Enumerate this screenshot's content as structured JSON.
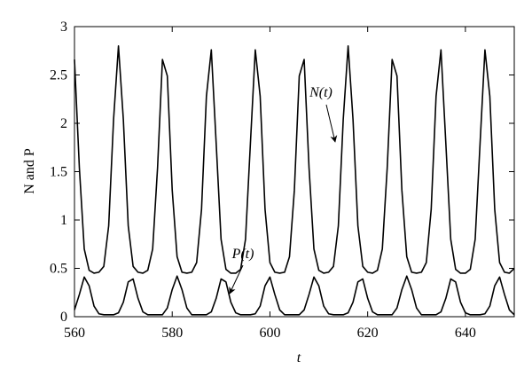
{
  "chart_data": {
    "type": "line",
    "xlabel": "t",
    "ylabel": "N and P",
    "annotations": [
      "N(t)",
      "P(t)"
    ],
    "xlim": [
      560,
      650
    ],
    "ylim": [
      0,
      3
    ],
    "xticks": [
      560,
      580,
      600,
      620,
      640
    ],
    "yticks": [
      0,
      0.5,
      1,
      1.5,
      2,
      2.5,
      3
    ],
    "grid": false,
    "x": [
      560,
      561,
      562,
      563,
      564,
      565,
      566,
      567,
      568,
      569,
      570,
      571,
      572,
      573,
      574,
      575,
      576,
      577,
      578,
      579,
      580,
      581,
      582,
      583,
      584,
      585,
      586,
      587,
      588,
      589,
      590,
      591,
      592,
      593,
      594,
      595,
      596,
      597,
      598,
      599,
      600,
      601,
      602,
      603,
      604,
      605,
      606,
      607,
      608,
      609,
      610,
      611,
      612,
      613,
      614,
      615,
      616,
      617,
      618,
      619,
      620,
      621,
      622,
      623,
      624,
      625,
      626,
      627,
      628,
      629,
      630,
      631,
      632,
      633,
      634,
      635,
      636,
      637,
      638,
      639,
      640,
      641,
      642,
      643,
      644,
      645,
      646,
      647,
      648,
      649,
      650
    ],
    "series": [
      {
        "color": "#000000",
        "values": [
          2.66,
          1.54,
          0.7,
          0.48,
          0.45,
          0.46,
          0.52,
          0.94,
          2.04,
          2.8,
          2.04,
          0.94,
          0.52,
          0.46,
          0.45,
          0.48,
          0.7,
          1.54,
          2.66,
          2.49,
          1.31,
          0.62,
          0.46,
          0.45,
          0.46,
          0.56,
          1.11,
          2.28,
          2.76,
          1.79,
          0.8,
          0.49,
          0.45,
          0.45,
          0.49,
          0.8,
          1.79,
          2.76,
          2.28,
          1.11,
          0.56,
          0.46,
          0.45,
          0.46,
          0.62,
          1.31,
          2.49,
          2.66,
          1.54,
          0.7,
          0.48,
          0.45,
          0.46,
          0.52,
          0.94,
          2.04,
          2.8,
          2.04,
          0.94,
          0.52,
          0.46,
          0.45,
          0.48,
          0.7,
          1.54,
          2.66,
          2.49,
          1.31,
          0.62,
          0.46,
          0.45,
          0.46,
          0.56,
          1.11,
          2.28,
          2.76,
          1.79,
          0.8,
          0.49,
          0.45,
          0.45,
          0.49,
          0.8,
          1.79,
          2.76,
          2.28,
          1.11,
          0.56,
          0.46,
          0.45,
          0.5
        ]
      },
      {
        "color": "#000000",
        "values": [
          0.07,
          0.23,
          0.41,
          0.32,
          0.11,
          0.03,
          0.02,
          0.02,
          0.02,
          0.04,
          0.15,
          0.36,
          0.39,
          0.19,
          0.05,
          0.02,
          0.02,
          0.02,
          0.02,
          0.09,
          0.28,
          0.42,
          0.28,
          0.09,
          0.02,
          0.02,
          0.02,
          0.02,
          0.05,
          0.19,
          0.39,
          0.36,
          0.15,
          0.04,
          0.02,
          0.02,
          0.02,
          0.03,
          0.11,
          0.32,
          0.41,
          0.23,
          0.07,
          0.02,
          0.02,
          0.02,
          0.02,
          0.07,
          0.23,
          0.41,
          0.32,
          0.11,
          0.03,
          0.02,
          0.02,
          0.02,
          0.04,
          0.15,
          0.36,
          0.39,
          0.19,
          0.05,
          0.02,
          0.02,
          0.02,
          0.02,
          0.09,
          0.28,
          0.42,
          0.28,
          0.09,
          0.02,
          0.02,
          0.02,
          0.02,
          0.05,
          0.19,
          0.39,
          0.36,
          0.15,
          0.04,
          0.02,
          0.02,
          0.02,
          0.03,
          0.11,
          0.32,
          0.41,
          0.23,
          0.07,
          0.02
        ]
      }
    ]
  }
}
